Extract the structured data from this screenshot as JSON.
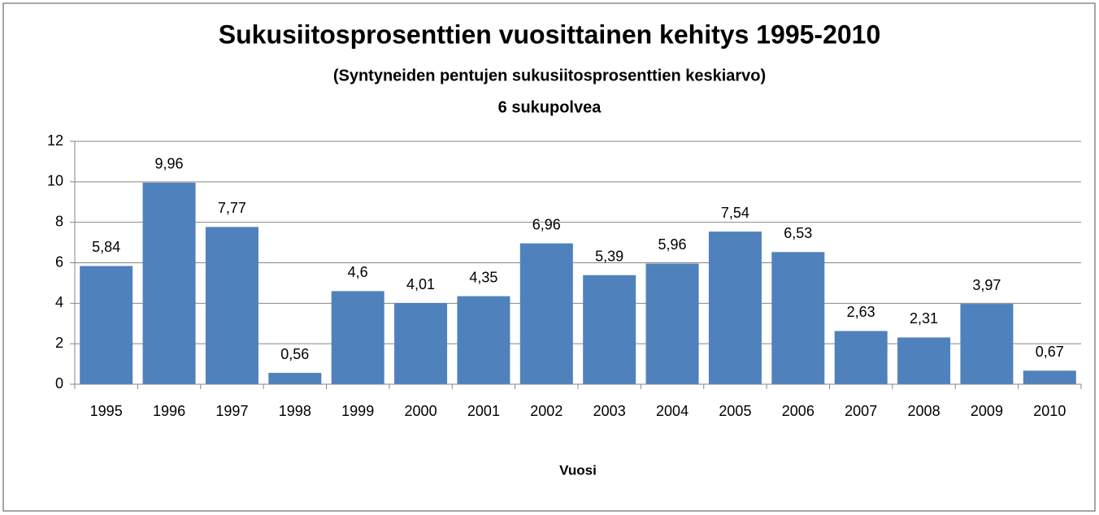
{
  "chart_data": {
    "type": "bar",
    "title": "Sukusiitosprosenttien vuosittainen kehitys 1995-2010",
    "subtitle": [
      "(Syntyneiden pentujen sukusiitosprosenttien keskiarvo)",
      "6 sukupolvea"
    ],
    "x_label": "Vuosi",
    "categories": [
      "1995",
      "1996",
      "1997",
      "1998",
      "1999",
      "2000",
      "2001",
      "2002",
      "2003",
      "2004",
      "2005",
      "2006",
      "2007",
      "2008",
      "2009",
      "2010"
    ],
    "values": [
      5.84,
      9.96,
      7.77,
      0.56,
      4.6,
      4.01,
      4.35,
      6.96,
      5.39,
      5.96,
      7.54,
      6.53,
      2.63,
      2.31,
      3.97,
      0.67
    ],
    "value_labels": [
      "5,84",
      "9,96",
      "7,77",
      "0,56",
      "4,6",
      "4,01",
      "4,35",
      "6,96",
      "5,39",
      "5,96",
      "7,54",
      "6,53",
      "2,63",
      "2,31",
      "3,97",
      "0,67"
    ],
    "color": "#4f81bd",
    "ylim": [
      0,
      12
    ],
    "yticks": [
      0,
      2,
      4,
      6,
      8,
      10,
      12
    ],
    "grid": true
  }
}
